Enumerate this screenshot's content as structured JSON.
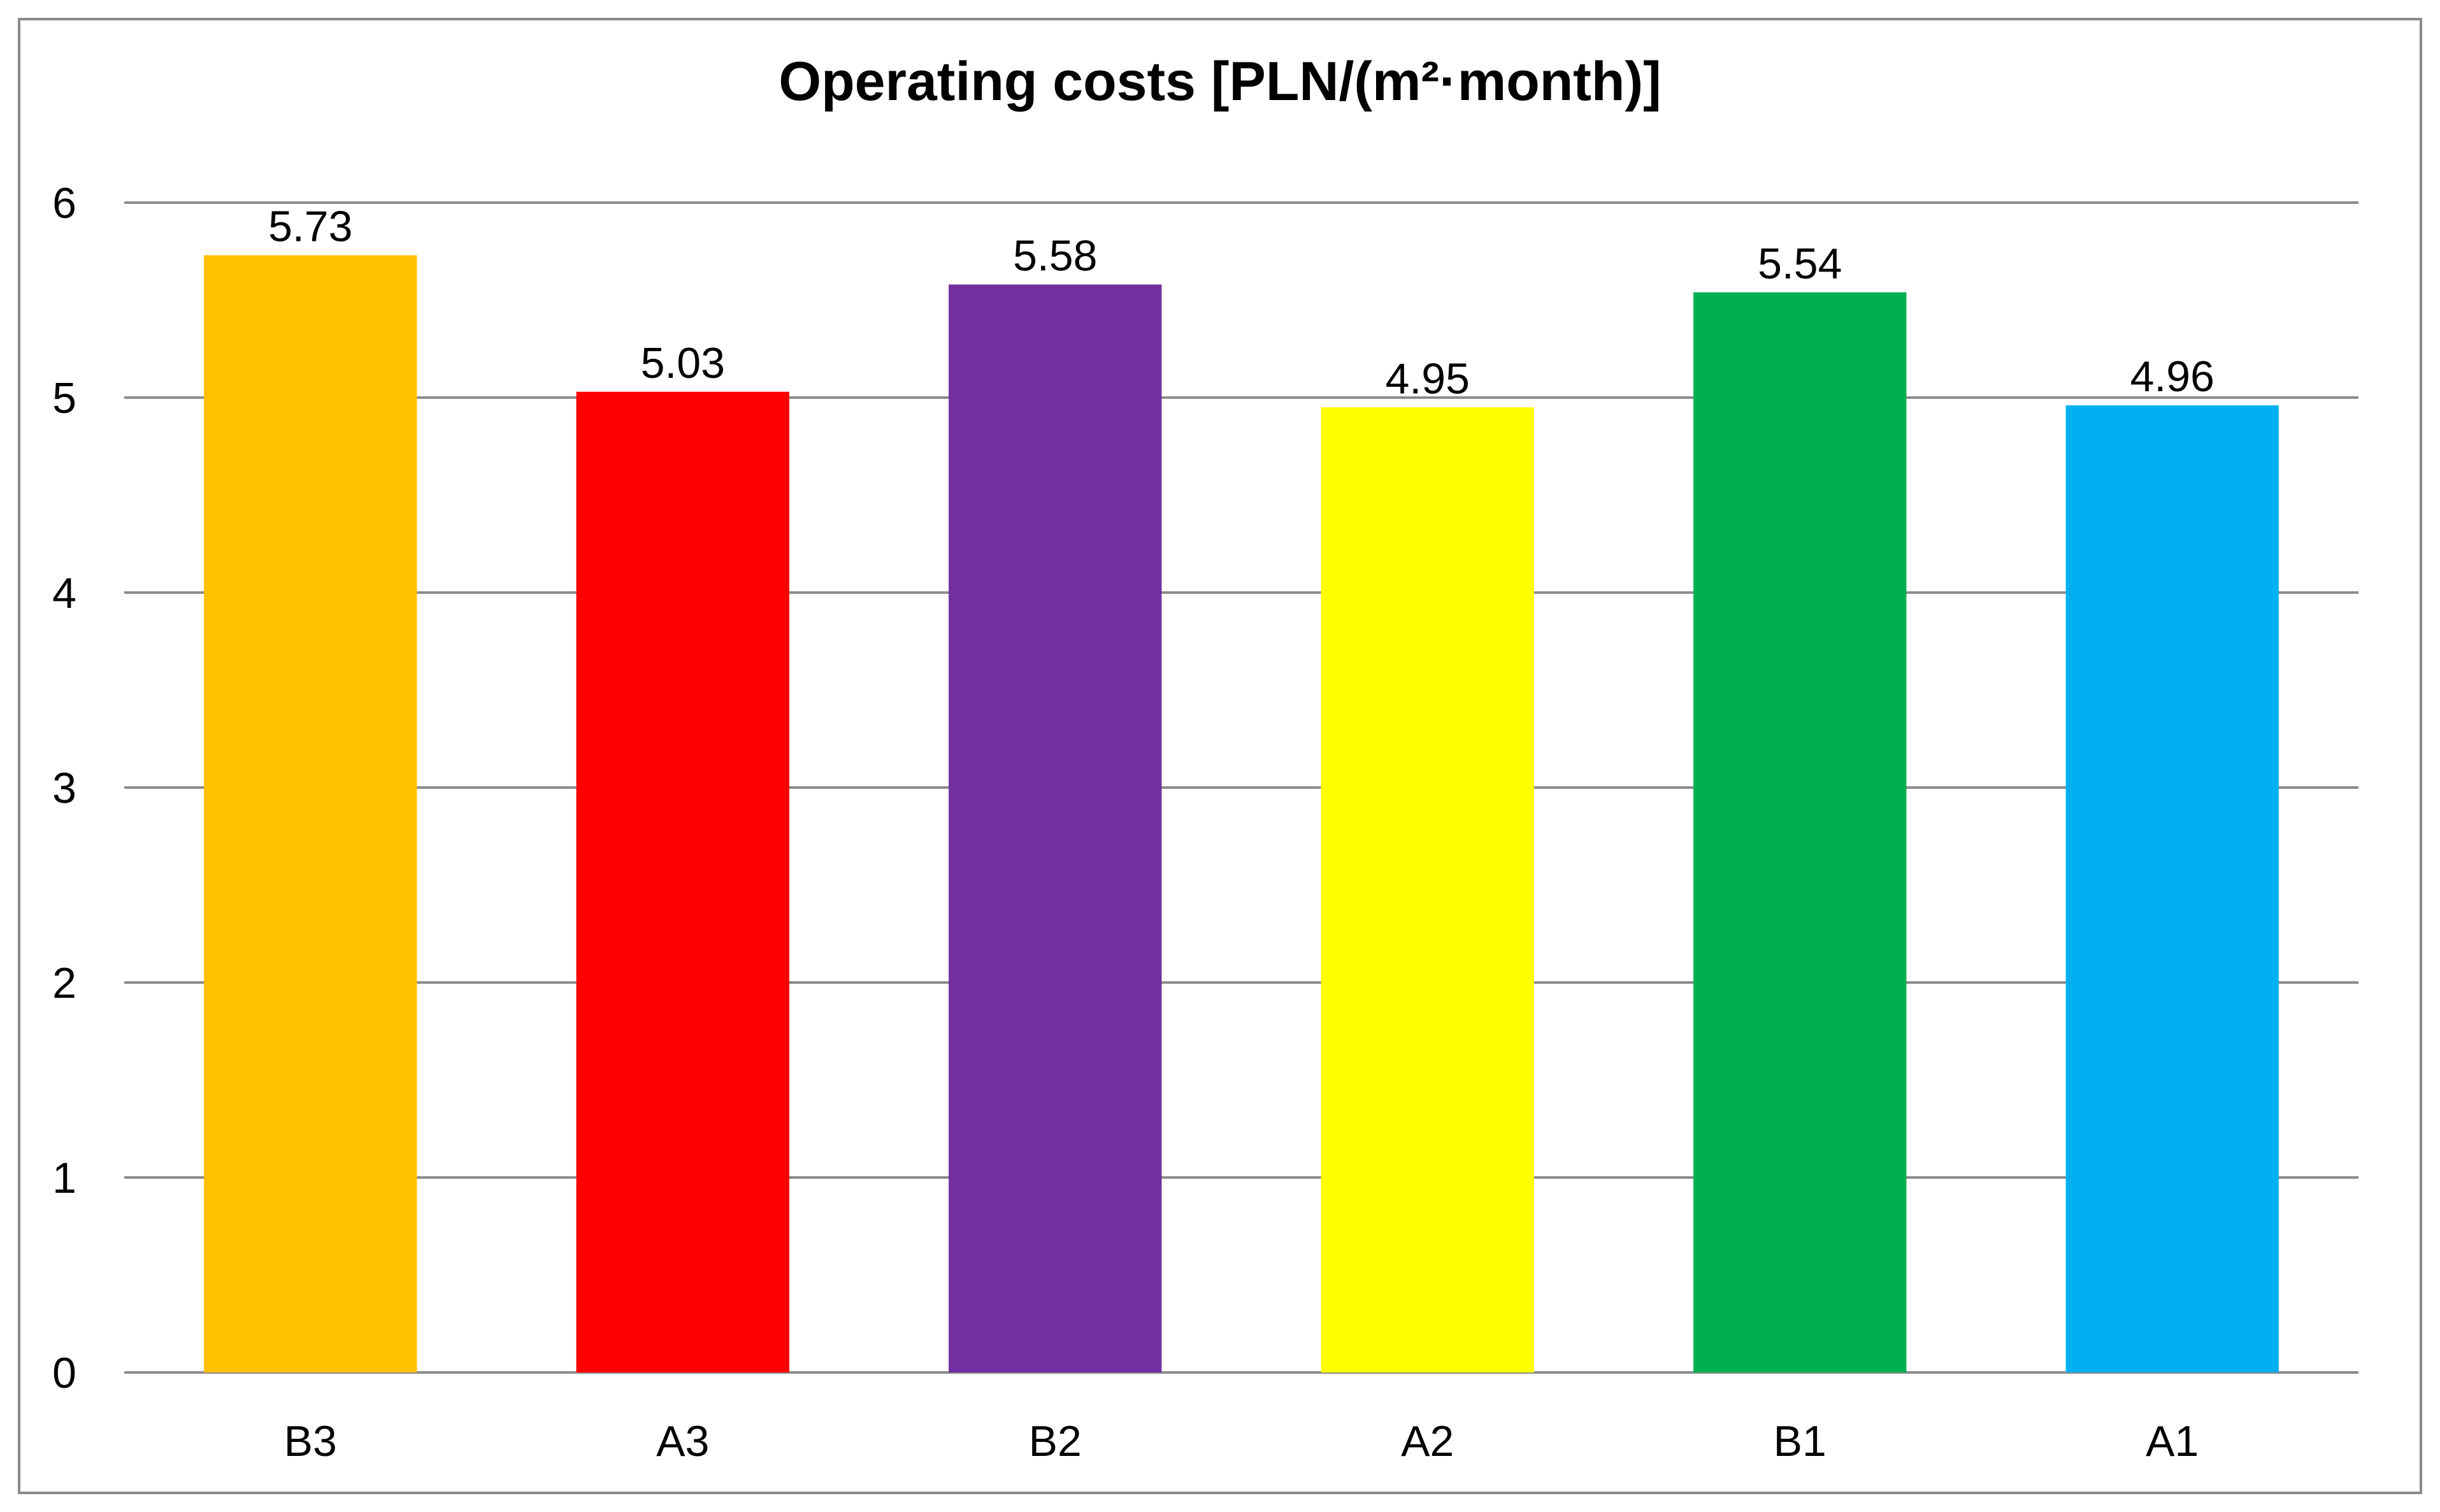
{
  "chart_data": {
    "type": "bar",
    "title": "Operating costs [PLN/(m²·month)]",
    "xlabel": "",
    "ylabel": "",
    "categories": [
      "B3",
      "A3",
      "B2",
      "A2",
      "B1",
      "A1"
    ],
    "values": [
      5.73,
      5.03,
      5.58,
      4.95,
      5.54,
      4.96
    ],
    "value_labels": [
      "5.73",
      "5.03",
      "5.58",
      "4.95",
      "5.54",
      "4.96"
    ],
    "colors": [
      "#FFC000",
      "#FF0000",
      "#7030A0",
      "#FFFF00",
      "#00B050",
      "#00B0F0"
    ],
    "ylim": [
      0,
      6
    ],
    "yticks": [
      0,
      1,
      2,
      3,
      4,
      5,
      6
    ],
    "ytick_labels": [
      "0",
      "1",
      "2",
      "3",
      "4",
      "5",
      "6"
    ],
    "grid": true,
    "legend": "none"
  }
}
